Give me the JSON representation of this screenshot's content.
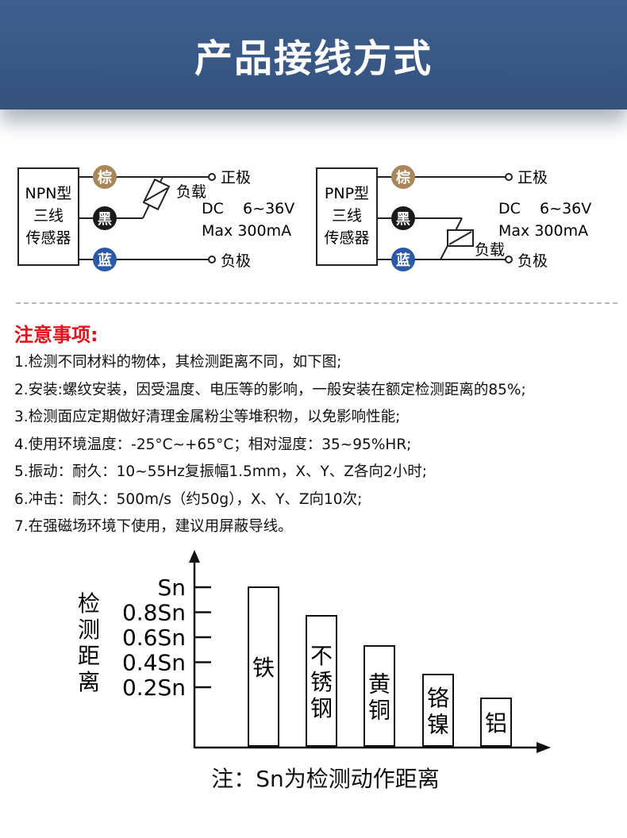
{
  "banner": {
    "title": "产品接线方式"
  },
  "wiring": {
    "npn": {
      "box_lines": [
        "NPN型",
        "三线",
        "传感器"
      ]
    },
    "pnp": {
      "box_lines": [
        "PNP型",
        "三线",
        "传感器"
      ]
    },
    "wire_tags": {
      "brown": "棕",
      "black": "黑",
      "blue": "蓝"
    },
    "positive": "正极",
    "negative": "负极",
    "load": "负载",
    "supply": "DC    6~36V",
    "max_current": "Max 300mA",
    "colors": {
      "brown": "#a9875a",
      "black": "#1a1a1a",
      "blue": "#2a5aa6"
    }
  },
  "notes": {
    "title": "注意事项:",
    "items": [
      "1.检测不同材料的物体，其检测距离不同，如下图;",
      "2.安装:螺纹安装，因受温度、电压等的影响，一般安装在额定检测距离的85%;",
      "3.检测面应定期做好清理金属粉尘等堆积物，以免影响性能;",
      "4.使用环境温度：-25°C~+65°C；相对湿度：35~95%HR;",
      "5.振动：耐久：10~55Hz复振幅1.5mm，X、Y、Z各向2小时;",
      "6.冲击：耐久：500m/s（约50g），X、Y、Z向10次;",
      "7.在强磁场环境下使用，建议用屏蔽导线。"
    ]
  },
  "chart_data": {
    "type": "bar",
    "ylabel": "检测距离",
    "ytick_labels": [
      "Sn",
      "0.8Sn",
      "0.6Sn",
      "0.4Sn",
      "0.2Sn"
    ],
    "categories": [
      "铁",
      "不锈钢",
      "黄铜",
      "铬镍",
      "铝"
    ],
    "values": [
      1.0,
      0.82,
      0.63,
      0.45,
      0.3
    ],
    "ylim": [
      0,
      1.0
    ],
    "grid": false
  },
  "footnote": "注：Sn为检测动作距离"
}
